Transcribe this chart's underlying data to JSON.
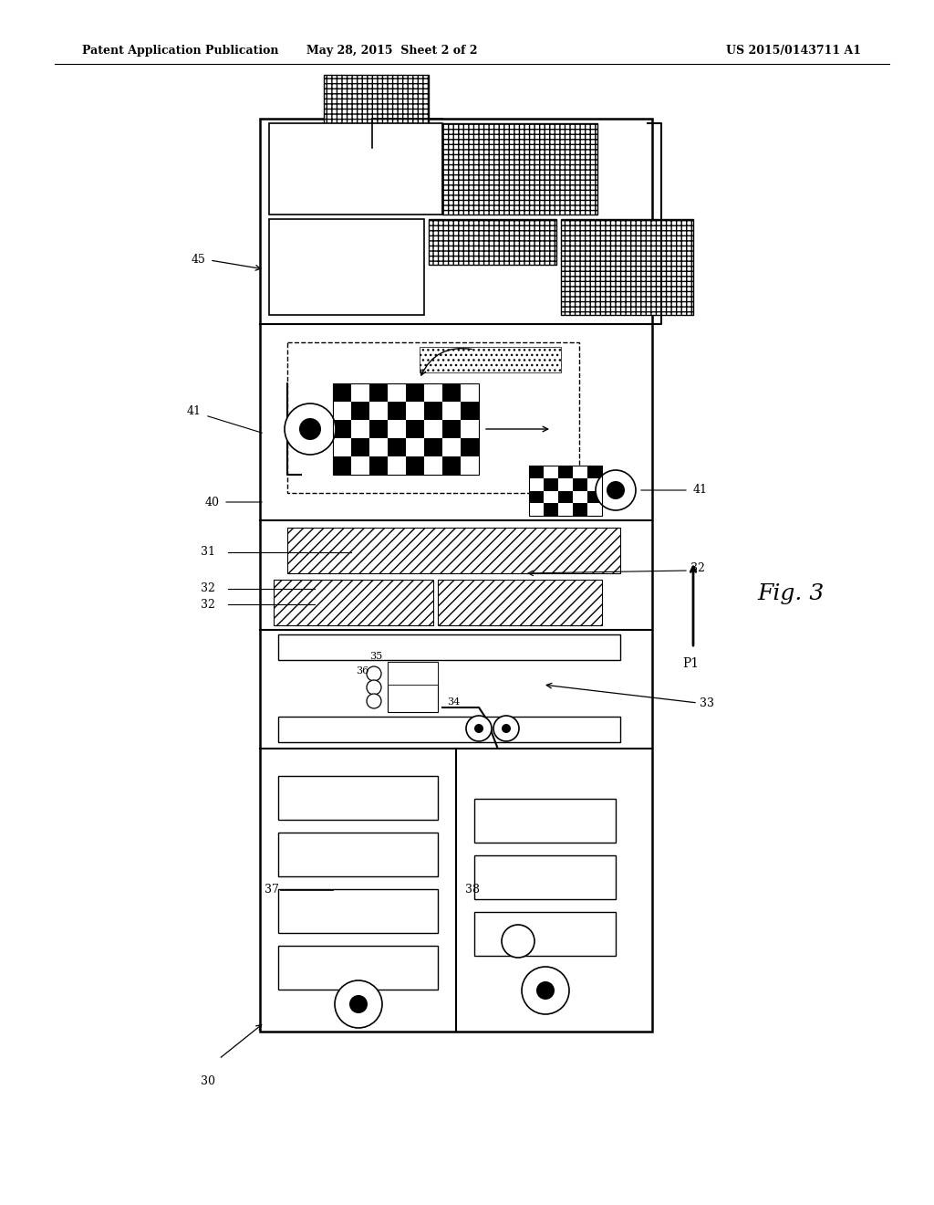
{
  "title_left": "Patent Application Publication",
  "title_mid": "May 28, 2015  Sheet 2 of 2",
  "title_right": "US 2015/0143711 A1",
  "fig_label": "Fig. 3",
  "p1_label": "P1",
  "bg_color": "#ffffff"
}
